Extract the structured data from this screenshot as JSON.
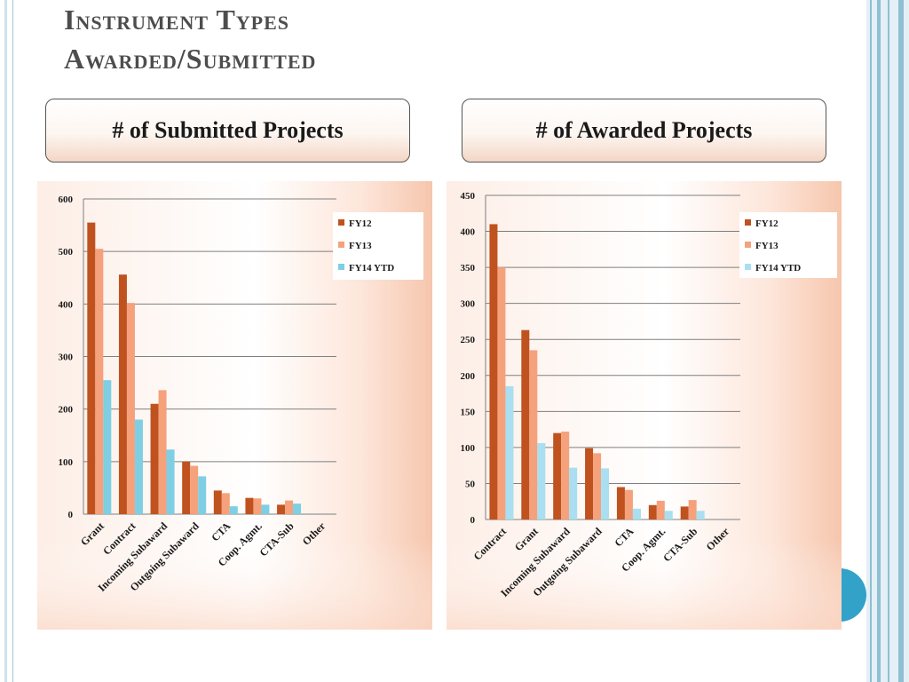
{
  "slide": {
    "title_line1": "Instrument Types",
    "title_line2": "Awarded/Submitted"
  },
  "boxes": {
    "submitted_label": "# of Submitted Projects",
    "awarded_label": "# of Awarded Projects"
  },
  "colors": {
    "fy12": "#c0521f",
    "fy13": "#f5a17b",
    "fy14": "#7ecfe3",
    "fy14_awarded": "#a9dff0",
    "accent": "#32a2c9",
    "panel_fade": "#f6c6ad"
  },
  "chart_data": [
    {
      "type": "bar",
      "categories": [
        "Grant",
        "Contract",
        "Incoming Subaward",
        "Outgoing Subaward",
        "CTA",
        "Coop. Agmt.",
        "CTA-Sub",
        "Other"
      ],
      "series": [
        {
          "name": "FY12",
          "values": [
            555,
            456,
            210,
            100,
            45,
            31,
            18,
            0
          ]
        },
        {
          "name": "FY13",
          "values": [
            505,
            402,
            236,
            92,
            40,
            30,
            26,
            0
          ]
        },
        {
          "name": "FY14 YTD",
          "values": [
            255,
            180,
            123,
            72,
            15,
            18,
            20,
            0
          ]
        }
      ],
      "ylim": [
        0,
        600
      ],
      "yticks": [
        0,
        100,
        200,
        300,
        400,
        500,
        600
      ],
      "grid": true,
      "legend": "top-right"
    },
    {
      "type": "bar",
      "categories": [
        "Contract",
        "Grant",
        "Incoming Subaward",
        "Outgoing Subaward",
        "CTA",
        "Coop. Agmt.",
        "CTA-Sub",
        "Other"
      ],
      "series": [
        {
          "name": "FY12",
          "values": [
            410,
            263,
            120,
            99,
            45,
            20,
            18,
            0
          ]
        },
        {
          "name": "FY13",
          "values": [
            350,
            235,
            122,
            92,
            41,
            26,
            27,
            0
          ]
        },
        {
          "name": "FY14 YTD",
          "values": [
            185,
            106,
            72,
            71,
            15,
            12,
            12,
            0
          ]
        }
      ],
      "ylim": [
        0,
        450
      ],
      "yticks": [
        0,
        50,
        100,
        150,
        200,
        250,
        300,
        350,
        400,
        450
      ],
      "grid": true,
      "legend": "top-right"
    }
  ]
}
